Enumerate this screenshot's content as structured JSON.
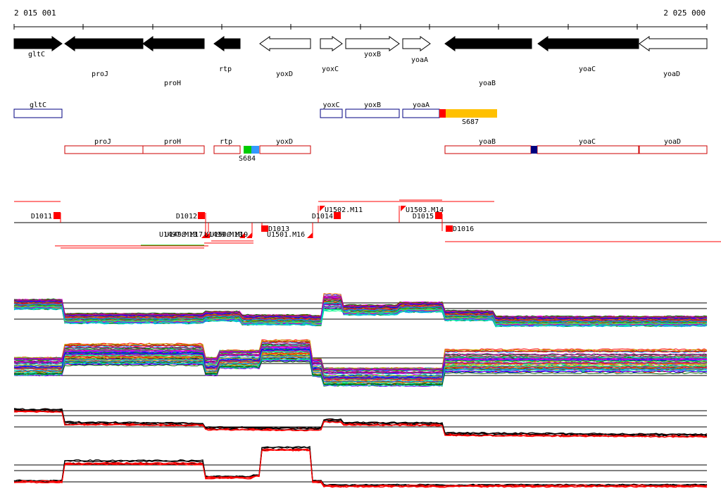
{
  "ruler": {
    "start_label": "2 015 001",
    "end_label": "2 025 000"
  },
  "genes": [
    {
      "name": "gltC",
      "strand": "+",
      "fill": "black"
    },
    {
      "name": "proJ",
      "strand": "-",
      "fill": "black"
    },
    {
      "name": "proH",
      "strand": "-",
      "fill": "black"
    },
    {
      "name": "rtp",
      "strand": "-",
      "fill": "black"
    },
    {
      "name": "yoxD",
      "strand": "-",
      "fill": "white"
    },
    {
      "name": "yoxC",
      "strand": "+",
      "fill": "white"
    },
    {
      "name": "yoxB",
      "strand": "+",
      "fill": "white"
    },
    {
      "name": "yoaA",
      "strand": "+",
      "fill": "white"
    },
    {
      "name": "yoaB",
      "strand": "-",
      "fill": "black"
    },
    {
      "name": "yoaC",
      "strand": "-",
      "fill": "black"
    },
    {
      "name": "yoaD",
      "strand": "-",
      "fill": "white"
    }
  ],
  "features_plus": [
    {
      "name": "gltC"
    },
    {
      "name": "yoxC"
    },
    {
      "name": "yoxB"
    },
    {
      "name": "yoaA"
    }
  ],
  "features_minus": [
    {
      "name": "proJ"
    },
    {
      "name": "proH"
    },
    {
      "name": "rtp"
    },
    {
      "name": "yoxD"
    },
    {
      "name": "yoaB"
    },
    {
      "name": "yoaC"
    },
    {
      "name": "yoaD"
    }
  ],
  "segments": [
    {
      "label": "S687",
      "colors": [
        "#ff0000",
        "#ffc000"
      ]
    },
    {
      "label": "S684",
      "colors": [
        "#00cc00",
        "#3399ff"
      ]
    },
    {
      "label": "",
      "colors": [
        "#000080"
      ]
    }
  ],
  "breakpoints_upper": [
    {
      "label": "D1011"
    },
    {
      "label": "D1012"
    },
    {
      "label": "D1014"
    },
    {
      "label": "U1502.M11"
    },
    {
      "label": "U1503.M14"
    },
    {
      "label": "D1015"
    }
  ],
  "breakpoints_lower": [
    {
      "label": "U1497.M13"
    },
    {
      "label": "U1498.M17"
    },
    {
      "label": "U1499.M10"
    },
    {
      "label": "U1500.M19"
    },
    {
      "label": "D1013"
    },
    {
      "label": "U1501.M16"
    },
    {
      "label": "D1016"
    }
  ],
  "colors": {
    "accent_red": "#ff0000",
    "gene_blue": "#000080",
    "gene_red": "#cc0000"
  }
}
